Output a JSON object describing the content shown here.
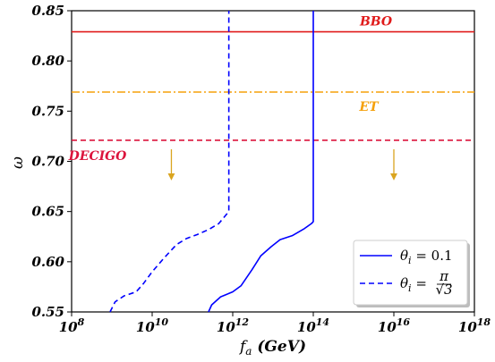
{
  "chart_data": {
    "type": "line",
    "xlabel": "f_a (GeV)",
    "ylabel": "ω",
    "xscale": "log",
    "xlim": [
      100000000.0,
      1e+18
    ],
    "ylim": [
      0.55,
      0.85
    ],
    "x_tick_values": [
      100000000.0,
      10000000000.0,
      1000000000000.0,
      100000000000000.0,
      1e+16,
      1e+18
    ],
    "x_tick_labels": [
      {
        "base": "10",
        "exp": "8"
      },
      {
        "base": "10",
        "exp": "10"
      },
      {
        "base": "10",
        "exp": "12"
      },
      {
        "base": "10",
        "exp": "14"
      },
      {
        "base": "10",
        "exp": "16"
      },
      {
        "base": "10",
        "exp": "18"
      }
    ],
    "y_tick_values": [
      0.55,
      0.6,
      0.65,
      0.7,
      0.75,
      0.8,
      0.85
    ],
    "y_tick_labels": [
      "0.55",
      "0.60",
      "0.65",
      "0.70",
      "0.75",
      "0.80",
      "0.85"
    ],
    "series": [
      {
        "name": "θ_i = 0.1",
        "legend_label": {
          "lhs": "θ",
          "sub": "i",
          "eq": " = 0.1"
        },
        "color": "#0000ff",
        "style": "solid",
        "x": [
          250000000000.0,
          300000000000.0,
          500000000000.0,
          1000000000000.0,
          1600000000000.0,
          3000000000000.0,
          5000000000000.0,
          9000000000000.0,
          15000000000000.0,
          30000000000000.0,
          60000000000000.0,
          90000000000000.0,
          100000000000000.0,
          100000000000000.0
        ],
        "y": [
          0.55,
          0.557,
          0.565,
          0.57,
          0.576,
          0.592,
          0.606,
          0.615,
          0.622,
          0.626,
          0.633,
          0.638,
          0.64,
          0.85
        ]
      },
      {
        "name": "θ_i = π/√3",
        "legend_label": {
          "lhs": "θ",
          "sub": "i",
          "eq": " = ",
          "num": "π",
          "den": "√3"
        },
        "color": "#0000ff",
        "style": "dashed",
        "x": [
          900000000.0,
          1200000000.0,
          2000000000.0,
          4000000000.0,
          6000000000.0,
          10000000000.0,
          20000000000.0,
          40000000000.0,
          70000000000.0,
          130000000000.0,
          250000000000.0,
          450000000000.0,
          800000000000.0,
          800000000000.0
        ],
        "y": [
          0.55,
          0.56,
          0.566,
          0.57,
          0.578,
          0.59,
          0.604,
          0.617,
          0.623,
          0.627,
          0.632,
          0.638,
          0.65,
          0.85
        ]
      }
    ],
    "horizontal_lines": [
      {
        "label": "BBO",
        "y": 0.829,
        "color": "#e01a1a",
        "style": "solid"
      },
      {
        "label": "ET",
        "y": 0.769,
        "color": "#f5a00a",
        "style": "dashdot"
      },
      {
        "label": "DECIGO",
        "y": 0.721,
        "color": "#dc143c",
        "style": "dashed"
      }
    ],
    "arrows": [
      {
        "x": 30000000000.0,
        "y_from": 0.712,
        "y_to": 0.681,
        "color": "#daa520"
      },
      {
        "x": 1e+16,
        "y_from": 0.712,
        "y_to": 0.681,
        "color": "#daa520"
      }
    ],
    "legend_position": "lower-right",
    "grid": false
  }
}
